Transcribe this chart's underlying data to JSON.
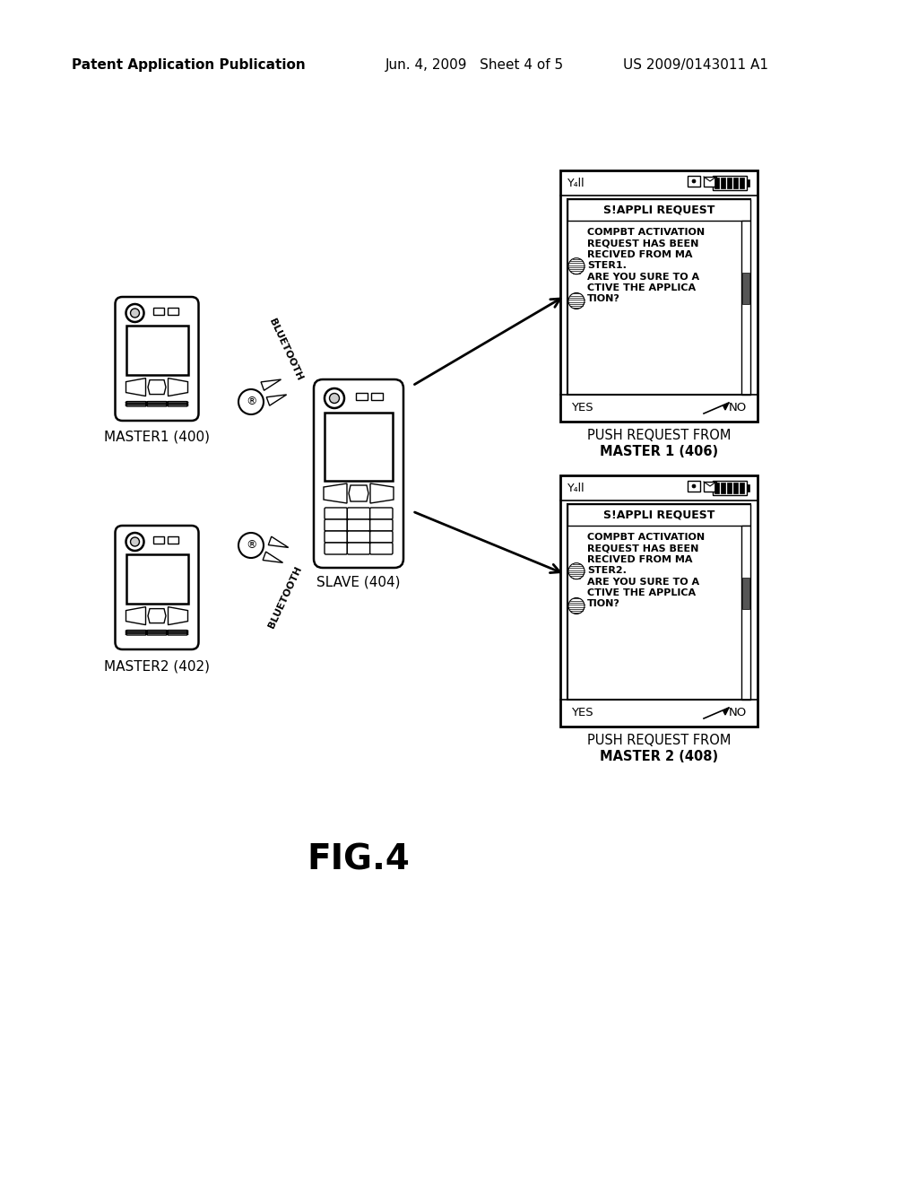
{
  "bg_color": "#ffffff",
  "header_left": "Patent Application Publication",
  "header_mid": "Jun. 4, 2009   Sheet 4 of 5",
  "header_right": "US 2009/0143011 A1",
  "fig_label": "FIG.4",
  "master1_label": "MASTER1 (400)",
  "master2_label": "MASTER2 (402)",
  "slave_label": "SLAVE (404)",
  "screen1_title": "S!APPLI REQUEST",
  "screen1_body": "COMPBT ACTIVATION\nREQUEST HAS BEEN\nRECIVED FROM MA\nSTER1.\nARE YOU SURE TO A\nCTIVE THE APPLICA\nTION?",
  "screen1_yes": "YES",
  "screen1_no": "NO",
  "screen1_cap1": "PUSH REQUEST FROM",
  "screen1_cap2": "MASTER 1 (406)",
  "screen2_title": "S!APPLI REQUEST",
  "screen2_body": "COMPBT ACTIVATION\nREQUEST HAS BEEN\nRECIVED FROM MA\nSTER2.\nARE YOU SURE TO A\nCTIVE THE APPLICA\nTION?",
  "screen2_yes": "YES",
  "screen2_no": "NO",
  "screen2_cap1": "PUSH REQUEST FROM",
  "screen2_cap2": "MASTER 2 (408)",
  "bt_label": "BLUETOOTH"
}
